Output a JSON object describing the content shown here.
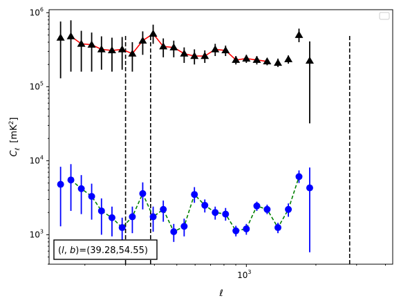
{
  "chart_data": {
    "type": "scatter",
    "title": "",
    "xlabel": "ℓ",
    "ylabel_main": "C",
    "ylabel_sub": "ℓ",
    "ylabel_units": "[mK",
    "ylabel_units_sup": "2",
    "ylabel_units_close": "]",
    "x_scale": "log",
    "y_scale": "log",
    "xlim": [
      140,
      4300
    ],
    "ylim": [
      400,
      1100000
    ],
    "x_tick_labels": [
      {
        "base": "10",
        "exp": "3",
        "value": 1000
      }
    ],
    "y_tick_labels": [
      {
        "base": "10",
        "exp": "3",
        "value": 1000
      },
      {
        "base": "10",
        "exp": "4",
        "value": 10000
      },
      {
        "base": "10",
        "exp": "5",
        "value": 100000
      },
      {
        "base": "10",
        "exp": "6",
        "value": 1000000
      }
    ],
    "vertical_lines": [
      {
        "x": 300,
        "ymin": 400,
        "ymax": 500000
      },
      {
        "x": 385,
        "ymin": 400,
        "ymax": 500000
      },
      {
        "x": 2800,
        "ymin": 400,
        "ymax": 500000
      }
    ],
    "legend_placement": "top-right",
    "legend_entries": [],
    "annotation": {
      "text": "(l, b)=(39.28,54.55)",
      "l_letter": "l",
      "b_letter": "b",
      "prefix": "(",
      "mid": ", ",
      "suffix": ")=(39.28,54.55)",
      "placement": "bottom-left"
    },
    "series": [
      {
        "marker": "triangle",
        "marker_color": "#000000",
        "errorbar_color": "#000000",
        "line_color": "#ff0000",
        "line_style": "solid",
        "line_range": [
          1,
          20
        ],
        "points": [
          {
            "x": 157,
            "y": 460000,
            "lo": 130000,
            "hi": 760000
          },
          {
            "x": 174,
            "y": 480000,
            "lo": 160000,
            "hi": 790000
          },
          {
            "x": 193,
            "y": 380000,
            "lo": 160000,
            "hi": 570000
          },
          {
            "x": 214,
            "y": 370000,
            "lo": 160000,
            "hi": 540000
          },
          {
            "x": 236,
            "y": 320000,
            "lo": 170000,
            "hi": 480000
          },
          {
            "x": 262,
            "y": 310000,
            "lo": 160000,
            "hi": 460000
          },
          {
            "x": 290,
            "y": 320000,
            "lo": 170000,
            "hi": 470000
          },
          {
            "x": 321,
            "y": 280000,
            "lo": 160000,
            "hi": 400000
          },
          {
            "x": 356,
            "y": 420000,
            "lo": 270000,
            "hi": 560000
          },
          {
            "x": 395,
            "y": 520000,
            "lo": 380000,
            "hi": 690000
          },
          {
            "x": 437,
            "y": 350000,
            "lo": 250000,
            "hi": 450000
          },
          {
            "x": 485,
            "y": 340000,
            "lo": 250000,
            "hi": 420000
          },
          {
            "x": 538,
            "y": 280000,
            "lo": 210000,
            "hi": 340000
          },
          {
            "x": 596,
            "y": 260000,
            "lo": 200000,
            "hi": 320000
          },
          {
            "x": 661,
            "y": 260000,
            "lo": 210000,
            "hi": 310000
          },
          {
            "x": 733,
            "y": 320000,
            "lo": 260000,
            "hi": 380000
          },
          {
            "x": 813,
            "y": 310000,
            "lo": 260000,
            "hi": 360000
          },
          {
            "x": 901,
            "y": 230000,
            "lo": 200000,
            "hi": 260000
          },
          {
            "x": 1000,
            "y": 240000,
            "lo": 210000,
            "hi": 270000
          },
          {
            "x": 1110,
            "y": 230000,
            "lo": 200000,
            "hi": 260000
          },
          {
            "x": 1230,
            "y": 220000,
            "lo": 195000,
            "hi": 240000
          },
          {
            "x": 1370,
            "y": 210000,
            "lo": 185000,
            "hi": 240000
          },
          {
            "x": 1520,
            "y": 235000,
            "lo": 205000,
            "hi": 265000
          },
          {
            "x": 1690,
            "y": 500000,
            "lo": 400000,
            "hi": 610000
          },
          {
            "x": 1880,
            "y": 225000,
            "lo": 32000,
            "hi": 410000
          }
        ]
      },
      {
        "marker": "circle",
        "marker_color": "#0000ff",
        "errorbar_color": "#0000ff",
        "line_color": "#008000",
        "line_style": "dashed",
        "line_range": [
          1,
          23
        ],
        "points": [
          {
            "x": 157,
            "y": 4800,
            "lo": 1300,
            "hi": 8300
          },
          {
            "x": 174,
            "y": 5500,
            "lo": 2100,
            "hi": 9000
          },
          {
            "x": 193,
            "y": 4200,
            "lo": 1900,
            "hi": 6400
          },
          {
            "x": 214,
            "y": 3300,
            "lo": 1600,
            "hi": 4900
          },
          {
            "x": 236,
            "y": 2100,
            "lo": 1000,
            "hi": 3100
          },
          {
            "x": 262,
            "y": 1700,
            "lo": 950,
            "hi": 2400
          },
          {
            "x": 290,
            "y": 1250,
            "lo": 800,
            "hi": 1700
          },
          {
            "x": 321,
            "y": 1750,
            "lo": 1050,
            "hi": 2400
          },
          {
            "x": 356,
            "y": 3600,
            "lo": 2200,
            "hi": 5100
          },
          {
            "x": 395,
            "y": 1750,
            "lo": 1100,
            "hi": 2400
          },
          {
            "x": 437,
            "y": 2200,
            "lo": 1500,
            "hi": 2900
          },
          {
            "x": 485,
            "y": 1100,
            "lo": 800,
            "hi": 1400
          },
          {
            "x": 538,
            "y": 1300,
            "lo": 950,
            "hi": 1650
          },
          {
            "x": 596,
            "y": 3500,
            "lo": 2700,
            "hi": 4400
          },
          {
            "x": 661,
            "y": 2500,
            "lo": 2000,
            "hi": 3000
          },
          {
            "x": 733,
            "y": 2000,
            "lo": 1600,
            "hi": 2400
          },
          {
            "x": 813,
            "y": 1900,
            "lo": 1550,
            "hi": 2300
          },
          {
            "x": 901,
            "y": 1130,
            "lo": 950,
            "hi": 1320
          },
          {
            "x": 1000,
            "y": 1200,
            "lo": 1000,
            "hi": 1400
          },
          {
            "x": 1110,
            "y": 2450,
            "lo": 2100,
            "hi": 2800
          },
          {
            "x": 1230,
            "y": 2200,
            "lo": 1900,
            "hi": 2550
          },
          {
            "x": 1370,
            "y": 1250,
            "lo": 1050,
            "hi": 1450
          },
          {
            "x": 1520,
            "y": 2200,
            "lo": 1750,
            "hi": 2650
          },
          {
            "x": 1690,
            "y": 6100,
            "lo": 5000,
            "hi": 7400
          },
          {
            "x": 1880,
            "y": 4300,
            "lo": 580,
            "hi": 8100
          }
        ]
      }
    ]
  }
}
